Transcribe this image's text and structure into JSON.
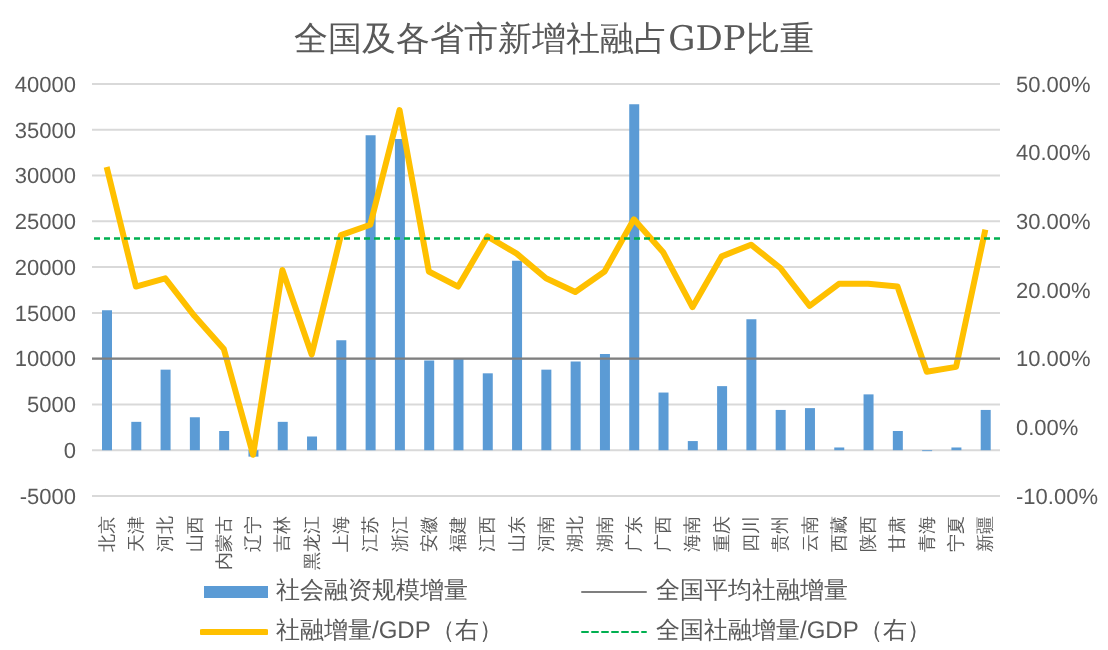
{
  "chart_data": {
    "type": "bar",
    "title": "全国及各省市新增社融占GDP比重",
    "categories": [
      "北京",
      "天津",
      "河北",
      "山西",
      "内蒙古",
      "辽宁",
      "吉林",
      "黑龙江",
      "上海",
      "江苏",
      "浙江",
      "安徽",
      "福建",
      "江西",
      "山东",
      "河南",
      "湖北",
      "湖南",
      "广东",
      "广西",
      "海南",
      "重庆",
      "四川",
      "贵州",
      "云南",
      "西藏",
      "陕西",
      "甘肃",
      "青海",
      "宁夏",
      "新疆"
    ],
    "series": [
      {
        "name": "社会融资规模增量",
        "color": "#5b9bd5",
        "values": [
          15300,
          3100,
          8800,
          3600,
          2100,
          -700,
          3100,
          1500,
          12000,
          34400,
          34000,
          9800,
          10000,
          8400,
          20700,
          8800,
          9700,
          10500,
          37800,
          6300,
          1000,
          7000,
          14300,
          4400,
          4600,
          300,
          6100,
          2100,
          -100,
          300,
          4400
        ]
      },
      {
        "name": "社融增量/GDP（右）",
        "type": "line",
        "axis": "y2",
        "color": "#ffc000",
        "values": [
          37.9,
          20.5,
          21.7,
          16.2,
          11.4,
          -4.0,
          22.9,
          10.6,
          28.0,
          29.5,
          46.2,
          22.7,
          20.5,
          27.8,
          25.3,
          21.7,
          19.7,
          22.7,
          30.3,
          25.5,
          17.5,
          24.9,
          26.6,
          23.2,
          17.7,
          20.9,
          20.9,
          20.5,
          8.1,
          8.8,
          28.8
        ]
      }
    ],
    "ref_lines": [
      {
        "axis": "y",
        "value": 10000,
        "label": "全国平均社融增量",
        "color": "#7f7f7f",
        "line_style": "solid"
      },
      {
        "axis": "y2",
        "value": 27.5,
        "label": "全国社融增量/GDP（右）",
        "color": "#00b050",
        "line_style": "dashed"
      }
    ],
    "ylim": [
      -5000,
      40000
    ],
    "yticks": [
      -5000,
      0,
      5000,
      10000,
      15000,
      20000,
      25000,
      30000,
      35000,
      40000
    ],
    "y2lim": [
      -10,
      50
    ],
    "y2ticks": [
      {
        "value": -10,
        "label": "-10.00%"
      },
      {
        "value": 0,
        "label": "0.00%"
      },
      {
        "value": 10,
        "label": "10.00%"
      },
      {
        "value": 20,
        "label": "20.00%"
      },
      {
        "value": 30,
        "label": "30.00%"
      },
      {
        "value": 40,
        "label": "40.00%"
      },
      {
        "value": 50,
        "label": "50.00%"
      }
    ],
    "grid": "y",
    "legend": "bottom",
    "marker": "none"
  }
}
